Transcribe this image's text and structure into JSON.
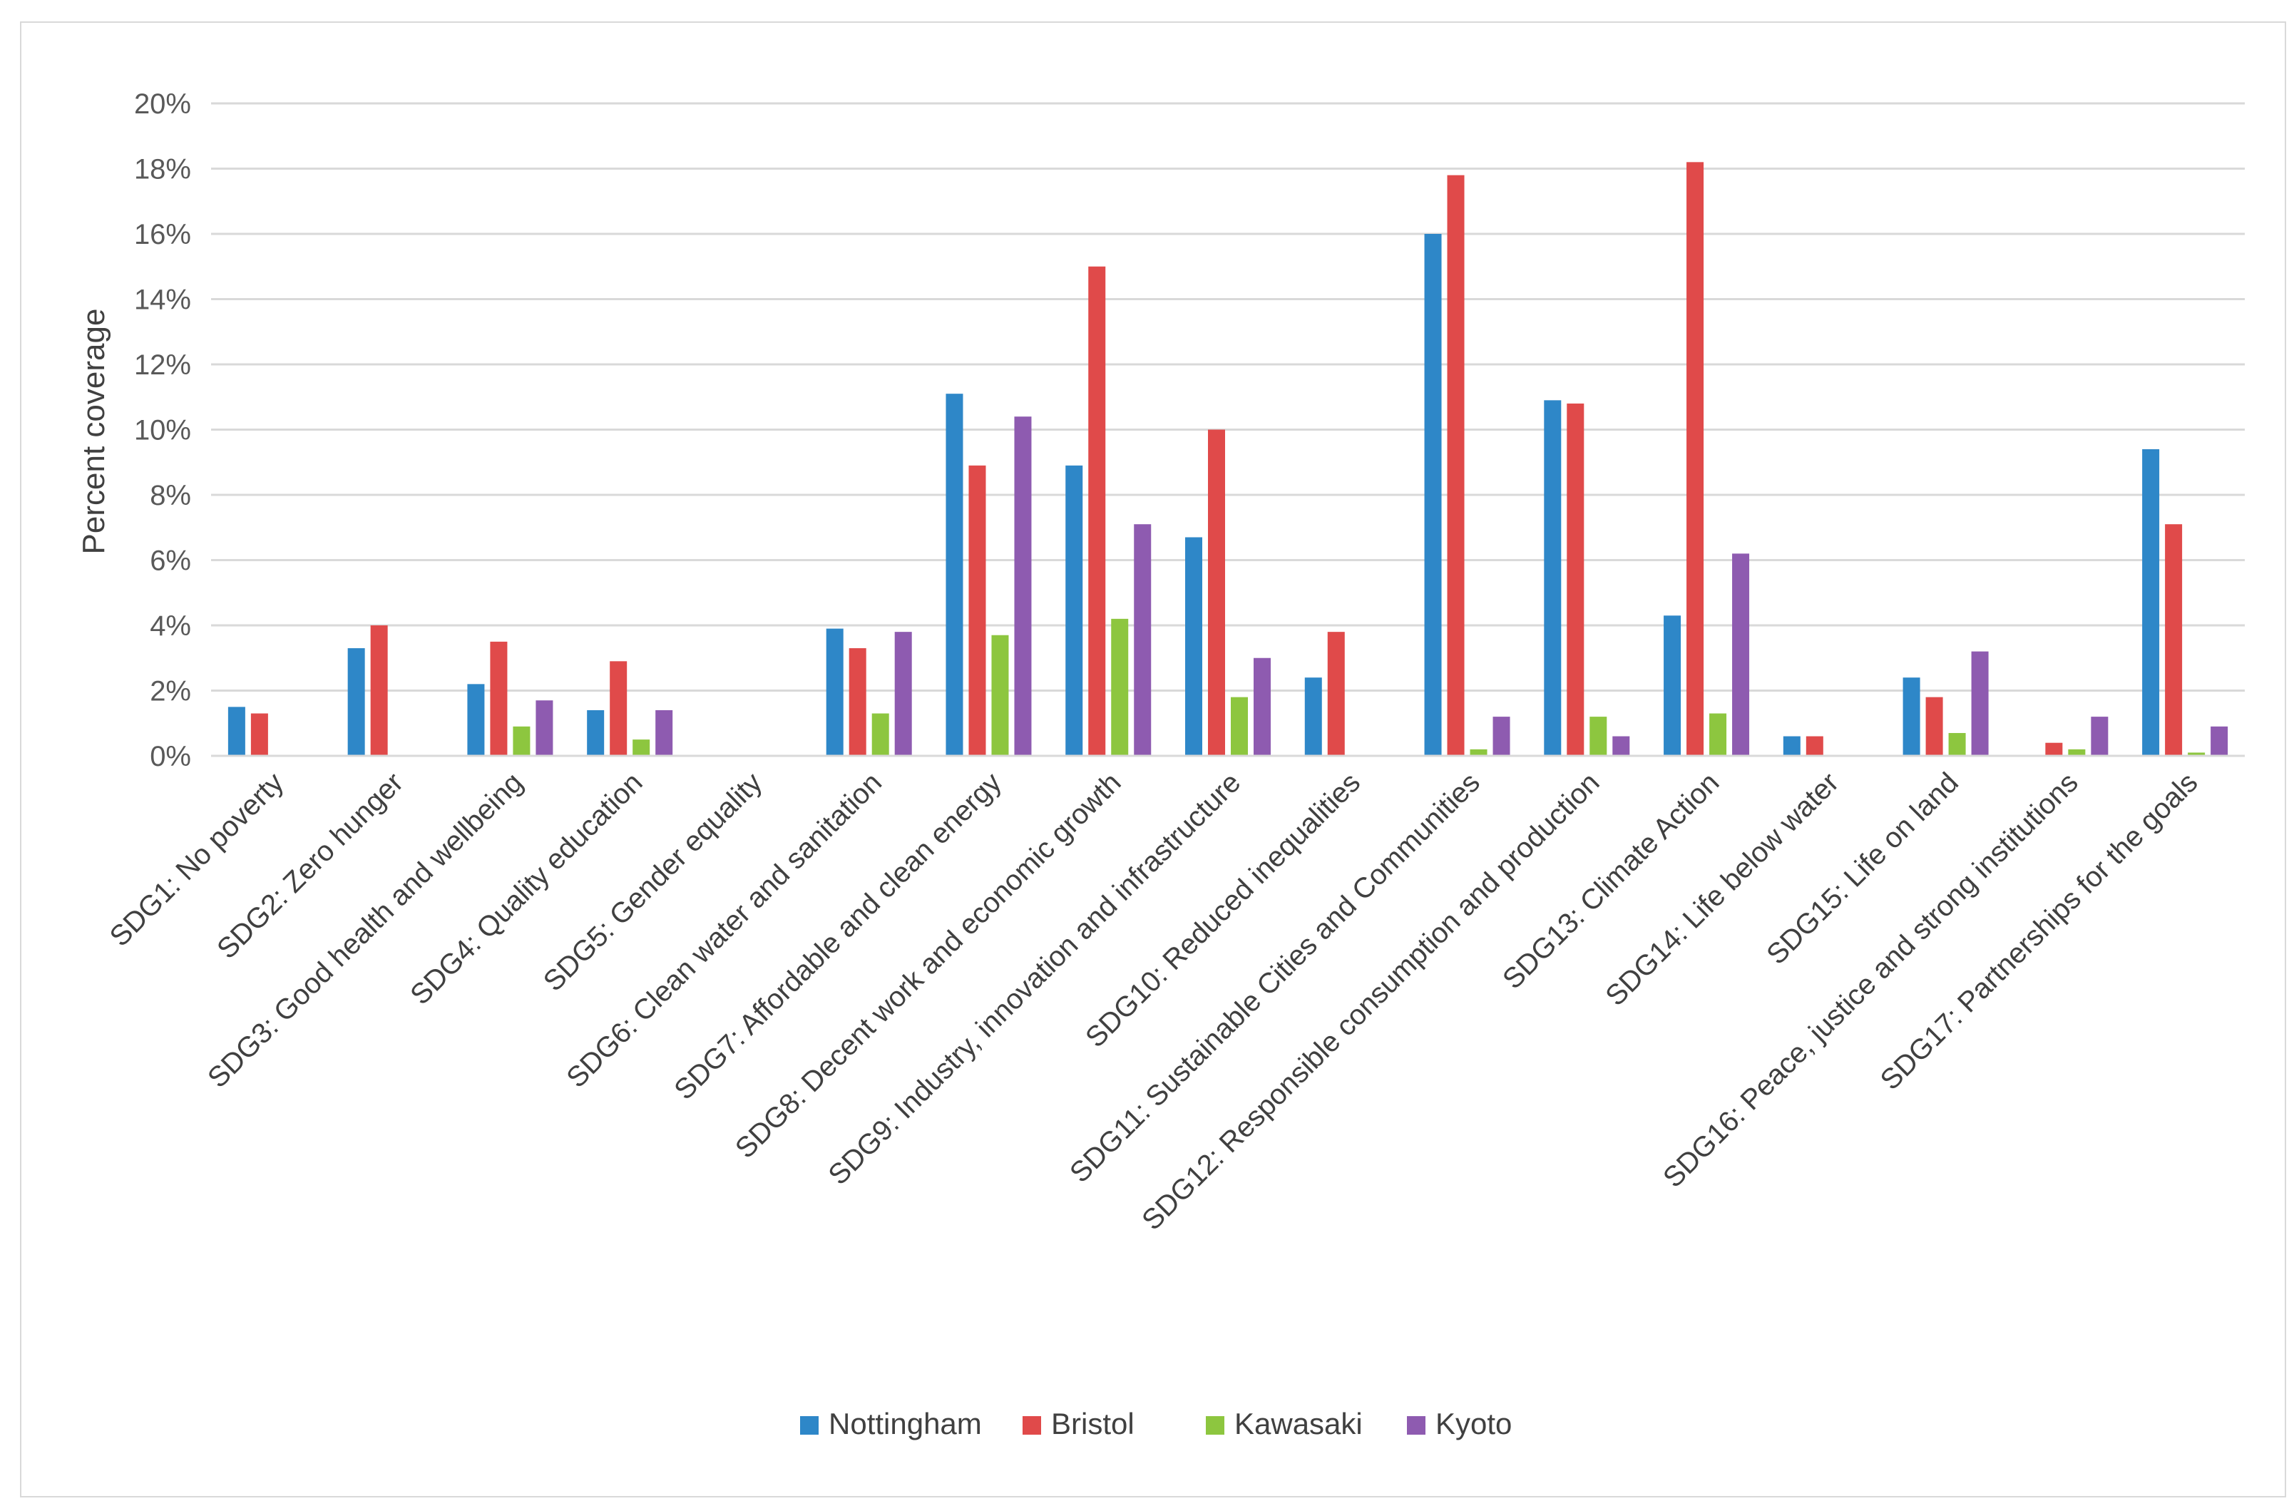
{
  "chart_data": {
    "type": "bar",
    "title": "",
    "xlabel": "",
    "ylabel": "Percent coverage",
    "ylim": [
      0,
      20
    ],
    "ytick_step": 2,
    "ytick_suffix": "%",
    "grid": true,
    "legend_position": "bottom",
    "categories": [
      "SDG1: No poverty",
      "SDG2: Zero hunger",
      "SDG3: Good health and wellbeing",
      "SDG4: Quality education",
      "SDG5: Gender equality",
      "SDG6: Clean water and sanitation",
      "SDG7:  Affordable and clean energy",
      "SDG8: Decent work and economic growth",
      "SDG9: Industry, innovation and infrastructure",
      "SDG10: Reduced inequalities",
      "SDG11: Sustainable Cities and Communities",
      "SDG12: Responsible consumption and production",
      "SDG13: Climate Action",
      "SDG14: Life below water",
      "SDG15: Life on land",
      "SDG16: Peace, justice  and strong institutions",
      "SDG17: Partnerships for the goals"
    ],
    "series": [
      {
        "name": "Nottingham",
        "color": "#2e87c8",
        "values": [
          1.5,
          3.3,
          2.2,
          1.4,
          0,
          3.9,
          11.1,
          8.9,
          6.7,
          2.4,
          16.0,
          10.9,
          4.3,
          0.6,
          2.4,
          0,
          9.4
        ]
      },
      {
        "name": "Bristol",
        "color": "#e04a4a",
        "values": [
          1.3,
          4.0,
          3.5,
          2.9,
          0,
          3.3,
          8.9,
          15.0,
          10.0,
          3.8,
          17.8,
          10.8,
          18.2,
          0.6,
          1.8,
          0.4,
          7.1
        ]
      },
      {
        "name": "Kawasaki",
        "color": "#8dc63f",
        "values": [
          0,
          0,
          0.9,
          0.5,
          0,
          1.3,
          3.7,
          4.2,
          1.8,
          0,
          0.2,
          1.2,
          1.3,
          0,
          0.7,
          0.2,
          0.1
        ]
      },
      {
        "name": "Kyoto",
        "color": "#8e5bb0",
        "values": [
          0,
          0,
          1.7,
          1.4,
          0,
          3.8,
          10.4,
          7.1,
          3.0,
          0,
          1.2,
          0.6,
          6.2,
          0,
          3.2,
          1.2,
          0.9
        ]
      }
    ]
  }
}
